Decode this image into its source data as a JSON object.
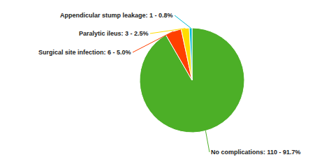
{
  "chart_data": {
    "type": "pie",
    "categories": [
      "No complications: 110 - 91.7%",
      "Surgical site infection: 6 - 5.0%",
      "Paralytic ileus: 3 - 2.5%",
      "Appendicular stump leakage: 1 - 0.8%"
    ],
    "values": [
      110,
      6,
      3,
      1
    ],
    "colors": [
      "#4caf27",
      "#ff4000",
      "#ffdd00",
      "#00bcd4"
    ]
  }
}
